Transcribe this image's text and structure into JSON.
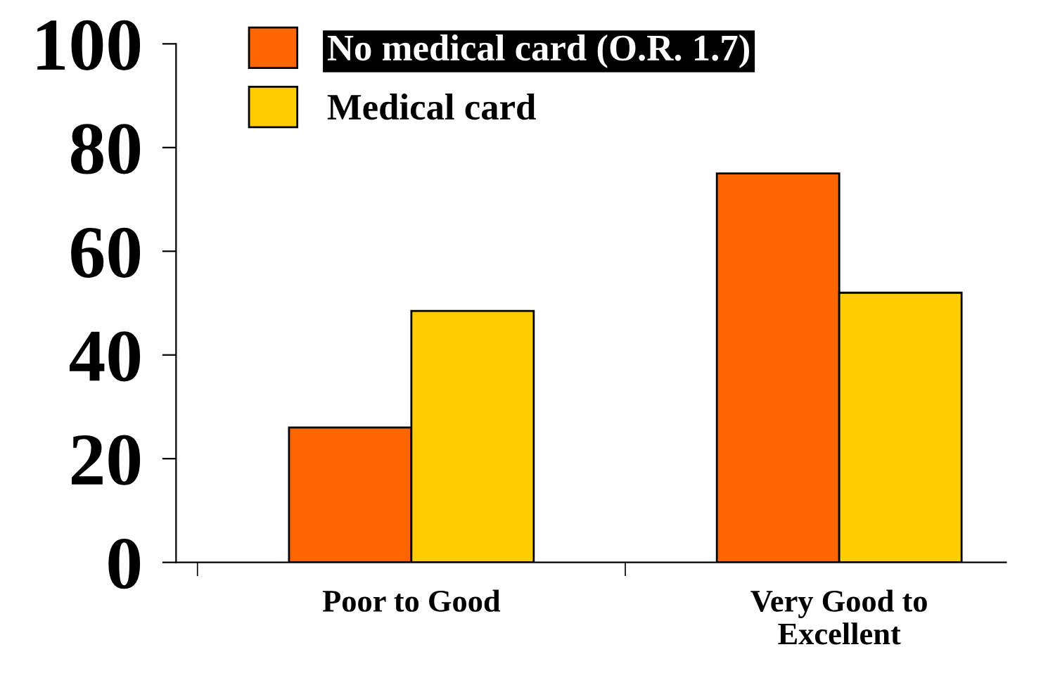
{
  "chart_data": {
    "type": "bar",
    "categories": [
      "Poor to Good",
      "Very Good to\nExcellent"
    ],
    "series": [
      {
        "name": "No medical card (O.R. 1.7)",
        "color": "#ff6600",
        "values": [
          26,
          75
        ]
      },
      {
        "name": "Medical card",
        "color": "#ffcc00",
        "values": [
          48.5,
          52
        ]
      }
    ],
    "ylim": [
      0,
      100
    ],
    "yticks": [
      0,
      20,
      40,
      60,
      80,
      100
    ],
    "grid": false,
    "legend": "top left"
  }
}
